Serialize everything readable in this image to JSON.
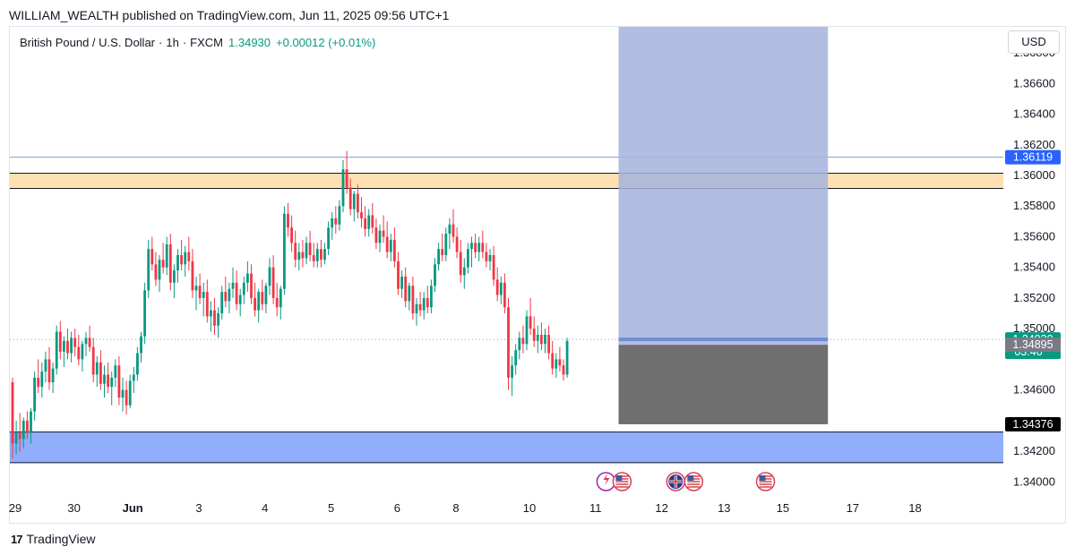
{
  "header": {
    "published_line": "WILLIAM_WEALTH published on TradingView.com, Jun 11, 2025 09:56 UTC+1"
  },
  "legend": {
    "symbol": "British Pound / U.S. Dollar",
    "interval": "1h",
    "exchange": "FXCM",
    "price": "1.34930",
    "change": "+0.00012 (+0.01%)"
  },
  "currency_button": "USD",
  "footer": {
    "brand": "TradingView",
    "logo_text": "17"
  },
  "colors": {
    "up": "#089981",
    "down": "#f23645",
    "resistance_zone": "#ffe0b2",
    "support_zone": "#90aefb",
    "target_zone": "#a3b3dd",
    "stop_zone": "#6f6f6f",
    "horizontal_line": "#7e9ce8"
  },
  "chart_data": {
    "type": "candlestick",
    "symbol": "GBPUSD",
    "interval": "1h",
    "y_axis": {
      "ylim": [
        1.3392,
        1.3697
      ],
      "ticks": [
        "1.34000",
        "1.34200",
        "1.34600",
        "1.35000",
        "1.35200",
        "1.35400",
        "1.35600",
        "1.35800",
        "1.36000",
        "1.36200",
        "1.36400",
        "1.36600",
        "1.36800"
      ]
    },
    "x_axis": {
      "labels": [
        "29",
        "30",
        "Jun",
        "3",
        "4",
        "5",
        "6",
        "8",
        "10",
        "11",
        "12",
        "13",
        "15",
        "17",
        "18"
      ],
      "label_bars": [
        0,
        16,
        32,
        50,
        68,
        86,
        104,
        120,
        140,
        158,
        176,
        193,
        209,
        228,
        245
      ],
      "bar_count_visible": 260
    },
    "price_labels": [
      {
        "value": 1.36119,
        "text": "1.36119",
        "kind": "line"
      },
      {
        "value": 1.3493,
        "text": "1.34930",
        "sub": "03:40",
        "kind": "last"
      },
      {
        "value": 1.34895,
        "text": "1.34895",
        "kind": "entry"
      },
      {
        "value": 1.34376,
        "text": "1.34376",
        "kind": "stop"
      }
    ],
    "horizontal_line": 1.36119,
    "zones": [
      {
        "name": "resistance",
        "top": 1.36015,
        "bottom": 1.35915
      },
      {
        "name": "support",
        "top": 1.34325,
        "bottom": 1.34125
      }
    ],
    "position": {
      "entry": 1.34895,
      "target": 1.3697,
      "stop": 1.34376,
      "start_bar": 165,
      "end_bar": 222
    },
    "events": [
      {
        "bar": 164,
        "kind": "us",
        "group": "pair"
      },
      {
        "bar": 183,
        "kind": "gb-us",
        "group": "pair"
      },
      {
        "bar": 205,
        "kind": "us",
        "group": "single"
      }
    ],
    "candles": [
      [
        1.3465,
        1.3468,
        1.3415,
        1.3425
      ],
      [
        1.3425,
        1.344,
        1.3418,
        1.3432
      ],
      [
        1.3432,
        1.3445,
        1.342,
        1.3428
      ],
      [
        1.3428,
        1.3442,
        1.3422,
        1.344
      ],
      [
        1.344,
        1.3446,
        1.3428,
        1.3432
      ],
      [
        1.3432,
        1.3448,
        1.3425,
        1.3446
      ],
      [
        1.3446,
        1.3472,
        1.344,
        1.3468
      ],
      [
        1.3468,
        1.348,
        1.3458,
        1.3462
      ],
      [
        1.3462,
        1.3478,
        1.3455,
        1.3472
      ],
      [
        1.3472,
        1.3485,
        1.3465,
        1.348
      ],
      [
        1.348,
        1.3488,
        1.346,
        1.3465
      ],
      [
        1.3465,
        1.3478,
        1.3458,
        1.3474
      ],
      [
        1.3474,
        1.3502,
        1.347,
        1.3498
      ],
      [
        1.3498,
        1.3505,
        1.348,
        1.3485
      ],
      [
        1.3485,
        1.3495,
        1.3475,
        1.3492
      ],
      [
        1.3492,
        1.35,
        1.348,
        1.3484
      ],
      [
        1.3484,
        1.3498,
        1.3478,
        1.3494
      ],
      [
        1.3494,
        1.35,
        1.3482,
        1.3488
      ],
      [
        1.3488,
        1.3496,
        1.3476,
        1.348
      ],
      [
        1.348,
        1.3492,
        1.3472,
        1.349
      ],
      [
        1.349,
        1.3498,
        1.3482,
        1.3494
      ],
      [
        1.3494,
        1.3502,
        1.3485,
        1.3488
      ],
      [
        1.3488,
        1.3494,
        1.3465,
        1.347
      ],
      [
        1.347,
        1.3482,
        1.3462,
        1.3478
      ],
      [
        1.3478,
        1.3486,
        1.346,
        1.3464
      ],
      [
        1.3464,
        1.3476,
        1.3455,
        1.347
      ],
      [
        1.347,
        1.3478,
        1.3458,
        1.3462
      ],
      [
        1.3462,
        1.3472,
        1.345,
        1.3468
      ],
      [
        1.3468,
        1.348,
        1.3462,
        1.3476
      ],
      [
        1.3476,
        1.3482,
        1.345,
        1.3455
      ],
      [
        1.3455,
        1.3468,
        1.3446,
        1.346
      ],
      [
        1.346,
        1.3466,
        1.3444,
        1.345
      ],
      [
        1.345,
        1.347,
        1.3448,
        1.3466
      ],
      [
        1.3466,
        1.3475,
        1.3458,
        1.347
      ],
      [
        1.347,
        1.3488,
        1.3466,
        1.3484
      ],
      [
        1.3484,
        1.3498,
        1.3478,
        1.3495
      ],
      [
        1.3495,
        1.353,
        1.349,
        1.3525
      ],
      [
        1.3525,
        1.3558,
        1.352,
        1.3552
      ],
      [
        1.3552,
        1.356,
        1.3538,
        1.3542
      ],
      [
        1.3542,
        1.355,
        1.3528,
        1.3532
      ],
      [
        1.3532,
        1.3548,
        1.3524,
        1.3545
      ],
      [
        1.3545,
        1.3556,
        1.3536,
        1.354
      ],
      [
        1.354,
        1.356,
        1.3535,
        1.3555
      ],
      [
        1.3555,
        1.3562,
        1.3525,
        1.353
      ],
      [
        1.353,
        1.3542,
        1.352,
        1.3538
      ],
      [
        1.3538,
        1.3552,
        1.353,
        1.3548
      ],
      [
        1.3548,
        1.3558,
        1.3538,
        1.3542
      ],
      [
        1.3542,
        1.3554,
        1.3534,
        1.355
      ],
      [
        1.355,
        1.356,
        1.3538,
        1.3544
      ],
      [
        1.3544,
        1.3552,
        1.352,
        1.3525
      ],
      [
        1.3525,
        1.3534,
        1.3512,
        1.3528
      ],
      [
        1.3528,
        1.3536,
        1.3516,
        1.352
      ],
      [
        1.352,
        1.353,
        1.3508,
        1.3524
      ],
      [
        1.3524,
        1.3532,
        1.3504,
        1.3508
      ],
      [
        1.3508,
        1.3518,
        1.3498,
        1.3512
      ],
      [
        1.3512,
        1.352,
        1.3496,
        1.3502
      ],
      [
        1.3502,
        1.3514,
        1.3494,
        1.351
      ],
      [
        1.351,
        1.3528,
        1.3506,
        1.3524
      ],
      [
        1.3524,
        1.3534,
        1.3514,
        1.3518
      ],
      [
        1.3518,
        1.353,
        1.351,
        1.3526
      ],
      [
        1.3526,
        1.354,
        1.352,
        1.353
      ],
      [
        1.353,
        1.3538,
        1.3512,
        1.3516
      ],
      [
        1.3516,
        1.3526,
        1.3508,
        1.3522
      ],
      [
        1.3522,
        1.3534,
        1.3516,
        1.353
      ],
      [
        1.353,
        1.3544,
        1.3524,
        1.3536
      ],
      [
        1.3536,
        1.3542,
        1.3516,
        1.352
      ],
      [
        1.352,
        1.353,
        1.3508,
        1.3512
      ],
      [
        1.3512,
        1.3526,
        1.3504,
        1.3524
      ],
      [
        1.3524,
        1.3532,
        1.3512,
        1.3516
      ],
      [
        1.3516,
        1.353,
        1.351,
        1.3528
      ],
      [
        1.3528,
        1.3546,
        1.3522,
        1.354
      ],
      [
        1.354,
        1.3548,
        1.3516,
        1.352
      ],
      [
        1.352,
        1.353,
        1.3508,
        1.3514
      ],
      [
        1.3514,
        1.3528,
        1.3506,
        1.3526
      ],
      [
        1.3526,
        1.358,
        1.3522,
        1.3575
      ],
      [
        1.3575,
        1.3582,
        1.356,
        1.3566
      ],
      [
        1.3566,
        1.3574,
        1.355,
        1.3556
      ],
      [
        1.3556,
        1.3564,
        1.354,
        1.3545
      ],
      [
        1.3545,
        1.3556,
        1.3538,
        1.355
      ],
      [
        1.355,
        1.3558,
        1.354,
        1.3546
      ],
      [
        1.3546,
        1.356,
        1.3542,
        1.3556
      ],
      [
        1.3556,
        1.3564,
        1.3544,
        1.3548
      ],
      [
        1.3548,
        1.3556,
        1.354,
        1.3544
      ],
      [
        1.3544,
        1.3556,
        1.354,
        1.3552
      ],
      [
        1.3552,
        1.3558,
        1.354,
        1.3545
      ],
      [
        1.3545,
        1.3556,
        1.3542,
        1.3552
      ],
      [
        1.3552,
        1.357,
        1.3548,
        1.3566
      ],
      [
        1.3566,
        1.3576,
        1.3558,
        1.3572
      ],
      [
        1.3572,
        1.358,
        1.3562,
        1.3568
      ],
      [
        1.3568,
        1.3584,
        1.3564,
        1.358
      ],
      [
        1.358,
        1.361,
        1.3576,
        1.3604
      ],
      [
        1.3604,
        1.3616,
        1.3588,
        1.3592
      ],
      [
        1.3592,
        1.3598,
        1.3574,
        1.3578
      ],
      [
        1.3578,
        1.359,
        1.357,
        1.3588
      ],
      [
        1.3588,
        1.3594,
        1.3572,
        1.3576
      ],
      [
        1.3576,
        1.3586,
        1.3566,
        1.3572
      ],
      [
        1.3572,
        1.358,
        1.356,
        1.3565
      ],
      [
        1.3565,
        1.3578,
        1.356,
        1.3574
      ],
      [
        1.3574,
        1.3582,
        1.3562,
        1.3566
      ],
      [
        1.3566,
        1.3572,
        1.3552,
        1.3556
      ],
      [
        1.3556,
        1.3568,
        1.355,
        1.3564
      ],
      [
        1.3564,
        1.3574,
        1.3556,
        1.356
      ],
      [
        1.356,
        1.357,
        1.3546,
        1.355
      ],
      [
        1.355,
        1.3562,
        1.3544,
        1.3558
      ],
      [
        1.3558,
        1.3566,
        1.354,
        1.3544
      ],
      [
        1.3544,
        1.355,
        1.3522,
        1.3526
      ],
      [
        1.3526,
        1.3538,
        1.352,
        1.3534
      ],
      [
        1.3534,
        1.354,
        1.3514,
        1.3518
      ],
      [
        1.3518,
        1.353,
        1.3512,
        1.3528
      ],
      [
        1.3528,
        1.3534,
        1.3506,
        1.351
      ],
      [
        1.351,
        1.352,
        1.3502,
        1.3516
      ],
      [
        1.3516,
        1.3524,
        1.3508,
        1.3512
      ],
      [
        1.3512,
        1.3524,
        1.3506,
        1.352
      ],
      [
        1.352,
        1.3528,
        1.351,
        1.3514
      ],
      [
        1.3514,
        1.3532,
        1.351,
        1.3528
      ],
      [
        1.3528,
        1.3546,
        1.3524,
        1.3542
      ],
      [
        1.3542,
        1.3556,
        1.3538,
        1.3552
      ],
      [
        1.3552,
        1.3562,
        1.3544,
        1.3548
      ],
      [
        1.3548,
        1.3566,
        1.3544,
        1.3562
      ],
      [
        1.3562,
        1.3572,
        1.3552,
        1.3568
      ],
      [
        1.3568,
        1.3578,
        1.3556,
        1.356
      ],
      [
        1.356,
        1.3566,
        1.3546,
        1.355
      ],
      [
        1.355,
        1.3558,
        1.353,
        1.3535
      ],
      [
        1.3535,
        1.3546,
        1.3526,
        1.354
      ],
      [
        1.354,
        1.3556,
        1.3536,
        1.3552
      ],
      [
        1.3552,
        1.356,
        1.354,
        1.3556
      ],
      [
        1.3556,
        1.3562,
        1.3546,
        1.355
      ],
      [
        1.355,
        1.356,
        1.3544,
        1.3556
      ],
      [
        1.3556,
        1.3564,
        1.3546,
        1.355
      ],
      [
        1.355,
        1.3556,
        1.354,
        1.3544
      ],
      [
        1.3544,
        1.3552,
        1.3538,
        1.3548
      ],
      [
        1.3548,
        1.3554,
        1.3528,
        1.3532
      ],
      [
        1.3532,
        1.354,
        1.3518,
        1.3522
      ],
      [
        1.3522,
        1.3534,
        1.3516,
        1.353
      ],
      [
        1.353,
        1.3536,
        1.351,
        1.3514
      ],
      [
        1.3514,
        1.352,
        1.346,
        1.3468
      ],
      [
        1.3468,
        1.3482,
        1.3456,
        1.3476
      ],
      [
        1.3476,
        1.349,
        1.347,
        1.3486
      ],
      [
        1.3486,
        1.3498,
        1.348,
        1.3494
      ],
      [
        1.3494,
        1.3502,
        1.3484,
        1.349
      ],
      [
        1.349,
        1.3512,
        1.3486,
        1.3508
      ],
      [
        1.3508,
        1.352,
        1.3496,
        1.35
      ],
      [
        1.35,
        1.3508,
        1.3488,
        1.3492
      ],
      [
        1.3492,
        1.3502,
        1.3484,
        1.3496
      ],
      [
        1.3496,
        1.3504,
        1.3486,
        1.349
      ],
      [
        1.349,
        1.35,
        1.3484,
        1.3496
      ],
      [
        1.3496,
        1.3502,
        1.348,
        1.3484
      ],
      [
        1.3484,
        1.3492,
        1.347,
        1.3474
      ],
      [
        1.3474,
        1.3484,
        1.3468,
        1.348
      ],
      [
        1.348,
        1.3488,
        1.3472,
        1.3476
      ],
      [
        1.3476,
        1.348,
        1.3466,
        1.347
      ],
      [
        1.347,
        1.3494,
        1.3468,
        1.3492
      ]
    ]
  }
}
